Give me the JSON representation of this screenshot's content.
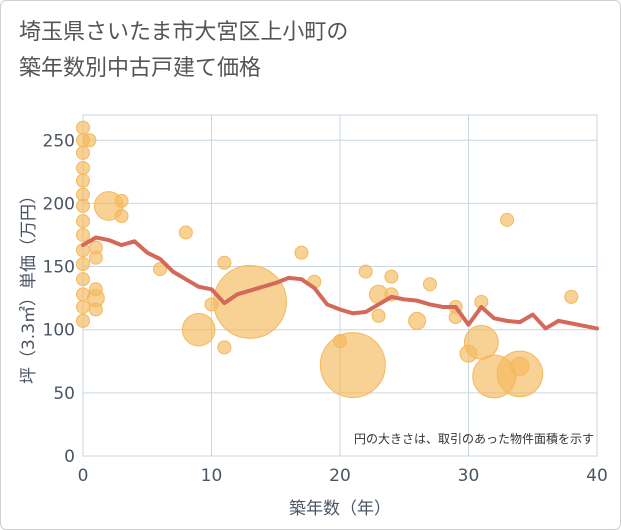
{
  "title_lines": [
    "埼玉県さいたま市大宮区上小町の",
    "築年数別中古戸建て価格"
  ],
  "chart_data": {
    "type": "scatter",
    "title": "埼玉県さいたま市大宮区上小町の築年数別中古戸建て価格",
    "xlabel": "築年数（年）",
    "ylabel": "坪（3.3㎡）単価（万円）",
    "xlim": [
      0,
      40
    ],
    "ylim": [
      0,
      270
    ],
    "x_ticks": [
      0,
      10,
      20,
      30,
      40
    ],
    "y_ticks": [
      0,
      50,
      100,
      150,
      200,
      250
    ],
    "grid": true,
    "note": "円の大きさは、取引のあった物件面積を示す",
    "colors": {
      "bubble": "#f5b85c",
      "line": "#d4695a",
      "grid": "#c9d6e2",
      "text": "#4a5564"
    },
    "bubbles": [
      {
        "x": 0,
        "y": 260,
        "size": 1
      },
      {
        "x": 0,
        "y": 250,
        "size": 1
      },
      {
        "x": 0,
        "y": 240,
        "size": 1
      },
      {
        "x": 0,
        "y": 228,
        "size": 1
      },
      {
        "x": 0,
        "y": 218,
        "size": 1
      },
      {
        "x": 0,
        "y": 207,
        "size": 1
      },
      {
        "x": 0,
        "y": 198,
        "size": 1
      },
      {
        "x": 0,
        "y": 186,
        "size": 1
      },
      {
        "x": 0,
        "y": 175,
        "size": 1
      },
      {
        "x": 0,
        "y": 163,
        "size": 1
      },
      {
        "x": 0,
        "y": 152,
        "size": 1
      },
      {
        "x": 0,
        "y": 140,
        "size": 1
      },
      {
        "x": 0,
        "y": 128,
        "size": 1
      },
      {
        "x": 0,
        "y": 118,
        "size": 1
      },
      {
        "x": 0,
        "y": 107,
        "size": 1
      },
      {
        "x": 0.5,
        "y": 250,
        "size": 1
      },
      {
        "x": 1,
        "y": 165,
        "size": 1
      },
      {
        "x": 1,
        "y": 157,
        "size": 1
      },
      {
        "x": 1,
        "y": 132,
        "size": 1
      },
      {
        "x": 1,
        "y": 125,
        "size": 1.3
      },
      {
        "x": 1,
        "y": 116,
        "size": 1
      },
      {
        "x": 2,
        "y": 198,
        "size": 2.2
      },
      {
        "x": 3,
        "y": 202,
        "size": 1
      },
      {
        "x": 3,
        "y": 190,
        "size": 1
      },
      {
        "x": 6,
        "y": 148,
        "size": 1
      },
      {
        "x": 8,
        "y": 177,
        "size": 1
      },
      {
        "x": 9,
        "y": 100,
        "size": 2.5
      },
      {
        "x": 10,
        "y": 120,
        "size": 1
      },
      {
        "x": 11,
        "y": 153,
        "size": 1
      },
      {
        "x": 11,
        "y": 86,
        "size": 1
      },
      {
        "x": 13,
        "y": 122,
        "size": 5.6
      },
      {
        "x": 17,
        "y": 161,
        "size": 1
      },
      {
        "x": 18,
        "y": 138,
        "size": 1
      },
      {
        "x": 20,
        "y": 91,
        "size": 1
      },
      {
        "x": 21,
        "y": 72,
        "size": 5
      },
      {
        "x": 22,
        "y": 146,
        "size": 1
      },
      {
        "x": 23,
        "y": 128,
        "size": 1.4
      },
      {
        "x": 23,
        "y": 111,
        "size": 1
      },
      {
        "x": 24,
        "y": 142,
        "size": 1
      },
      {
        "x": 24,
        "y": 128,
        "size": 1
      },
      {
        "x": 26,
        "y": 107,
        "size": 1.3
      },
      {
        "x": 27,
        "y": 136,
        "size": 1
      },
      {
        "x": 29,
        "y": 118,
        "size": 1
      },
      {
        "x": 29,
        "y": 110,
        "size": 1
      },
      {
        "x": 30,
        "y": 81,
        "size": 1.3
      },
      {
        "x": 31,
        "y": 122,
        "size": 1
      },
      {
        "x": 31,
        "y": 90,
        "size": 2.6
      },
      {
        "x": 32,
        "y": 63,
        "size": 3.3
      },
      {
        "x": 33,
        "y": 187,
        "size": 1
      },
      {
        "x": 34,
        "y": 65,
        "size": 3.5
      },
      {
        "x": 34,
        "y": 71,
        "size": 1.4
      },
      {
        "x": 38,
        "y": 126,
        "size": 1
      }
    ],
    "trend": {
      "x": [
        0,
        1,
        2,
        3,
        4,
        5,
        6,
        7,
        8,
        9,
        10,
        11,
        12,
        13,
        14,
        15,
        16,
        17,
        18,
        19,
        20,
        21,
        22,
        23,
        24,
        25,
        26,
        27,
        28,
        29,
        30,
        31,
        32,
        33,
        34,
        35,
        36,
        37,
        38,
        39,
        40
      ],
      "y": [
        167,
        173,
        171,
        167,
        170,
        161,
        156,
        146,
        140,
        134,
        132,
        121,
        128,
        131,
        134,
        137,
        141,
        140,
        133,
        120,
        116,
        113,
        114,
        120,
        126,
        124,
        123,
        120,
        118,
        118,
        104,
        118,
        109,
        107,
        106,
        112,
        101,
        107,
        105,
        103,
        101
      ]
    }
  }
}
